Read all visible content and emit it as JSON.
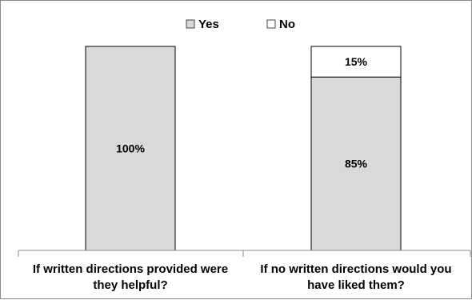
{
  "chart_data": {
    "type": "bar",
    "stacked": true,
    "percent": true,
    "categories": [
      [
        "If written directions provided were",
        "they helpful?"
      ],
      [
        "If no written directions would you",
        "have liked them?"
      ]
    ],
    "series": [
      {
        "name": "Yes",
        "values": [
          100,
          85
        ],
        "labels": [
          "100%",
          "85%"
        ],
        "color": "#d9d9d9"
      },
      {
        "name": "No",
        "values": [
          0,
          15
        ],
        "labels": [
          "",
          "15%"
        ],
        "color": "#ffffff"
      }
    ],
    "ylim": [
      0,
      100
    ],
    "legend_position": "top",
    "grid": false,
    "bar_border_color": "#000000",
    "axis_color": "#8a8a8a"
  }
}
